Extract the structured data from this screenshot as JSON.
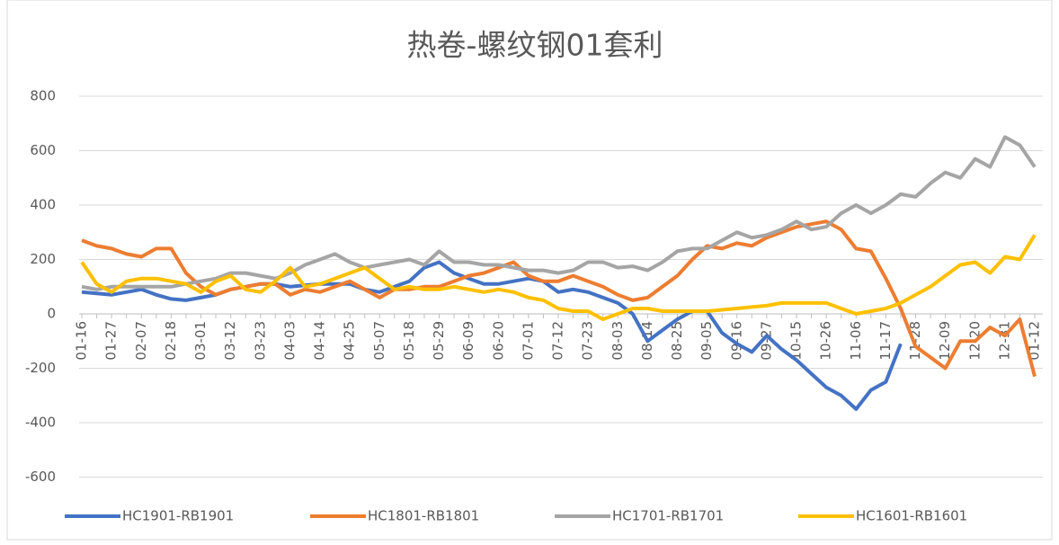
{
  "chart_data": {
    "type": "line",
    "title": "热卷-螺纹钢01套利",
    "categories": [
      "01-16",
      null,
      "01-27",
      null,
      "02-07",
      null,
      "02-18",
      null,
      "03-01",
      null,
      "03-12",
      null,
      "03-23",
      null,
      "04-03",
      null,
      "04-14",
      null,
      "04-25",
      null,
      "05-07",
      null,
      "05-18",
      null,
      "05-29",
      null,
      "06-09",
      null,
      "06-20",
      null,
      "07-01",
      null,
      "07-12",
      null,
      "07-23",
      null,
      "08-03",
      null,
      "08-14",
      null,
      "08-25",
      null,
      "09-05",
      null,
      "09-16",
      null,
      "09-27",
      null,
      "10-15",
      null,
      "10-26",
      null,
      "11-06",
      null,
      "11-17",
      null,
      "11-28",
      null,
      "12-09",
      null,
      "12-20",
      null,
      "12-31",
      null,
      "01-12"
    ],
    "series": [
      {
        "name": "HC1901-RB1901",
        "color": "#4472c4",
        "values": [
          80,
          75,
          70,
          80,
          90,
          70,
          55,
          50,
          60,
          70,
          90,
          100,
          110,
          110,
          100,
          105,
          110,
          110,
          110,
          90,
          80,
          100,
          120,
          170,
          190,
          150,
          130,
          110,
          110,
          120,
          130,
          120,
          80,
          90,
          80,
          60,
          40,
          0,
          -100,
          -60,
          -20,
          10,
          10,
          -70,
          -110,
          -140,
          -80,
          -130,
          -170,
          -220,
          -270,
          -300,
          -350,
          -280,
          -250,
          -110,
          null,
          null,
          null,
          null,
          null,
          null,
          null,
          null,
          null
        ]
      },
      {
        "name": "HC1801-RB1801",
        "color": "#ed7d31",
        "values": [
          270,
          250,
          240,
          220,
          210,
          240,
          240,
          150,
          100,
          70,
          90,
          100,
          110,
          110,
          70,
          90,
          80,
          100,
          120,
          90,
          60,
          90,
          90,
          100,
          100,
          120,
          140,
          150,
          170,
          190,
          140,
          120,
          120,
          140,
          120,
          100,
          70,
          50,
          60,
          100,
          140,
          200,
          250,
          240,
          260,
          250,
          280,
          300,
          320,
          330,
          340,
          310,
          240,
          230,
          130,
          20,
          -120,
          -160,
          -200,
          -100,
          -100,
          -50,
          -80,
          -20,
          -230
        ]
      },
      {
        "name": "HC1701-RB1701",
        "color": "#a5a5a5",
        "values": [
          100,
          90,
          100,
          100,
          100,
          100,
          100,
          110,
          120,
          130,
          150,
          150,
          140,
          130,
          150,
          180,
          200,
          220,
          190,
          170,
          180,
          190,
          200,
          180,
          230,
          190,
          190,
          180,
          180,
          170,
          160,
          160,
          150,
          160,
          190,
          190,
          170,
          175,
          160,
          190,
          230,
          240,
          240,
          270,
          300,
          280,
          290,
          310,
          340,
          310,
          320,
          370,
          400,
          370,
          400,
          440,
          430,
          480,
          520,
          500,
          570,
          540,
          650,
          620,
          540
        ]
      },
      {
        "name": "HC1601-RB1601",
        "color": "#ffc000",
        "values": [
          190,
          110,
          80,
          120,
          130,
          130,
          120,
          110,
          80,
          120,
          140,
          90,
          80,
          120,
          170,
          100,
          110,
          130,
          150,
          170,
          130,
          90,
          100,
          90,
          90,
          100,
          90,
          80,
          90,
          80,
          60,
          50,
          20,
          10,
          10,
          -20,
          0,
          20,
          20,
          10,
          10,
          10,
          10,
          15,
          20,
          25,
          30,
          40,
          40,
          40,
          40,
          20,
          0,
          10,
          20,
          40,
          70,
          100,
          140,
          180,
          190,
          150,
          210,
          200,
          290
        ]
      }
    ],
    "ylim": [
      -600,
      800
    ],
    "yticks": [
      -600,
      -400,
      -200,
      0,
      200,
      400,
      600,
      800
    ],
    "grid": true
  }
}
